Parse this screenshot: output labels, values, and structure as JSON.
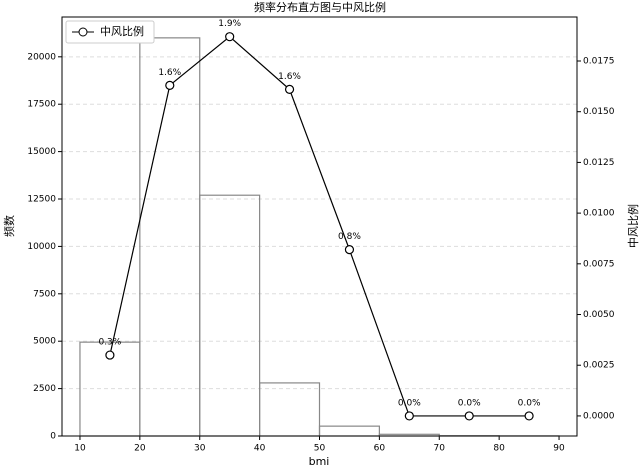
{
  "chart_data": {
    "type": "histogram",
    "title": "频率分布直方图与中风比例",
    "xlabel": "bmi",
    "ylabel": "频数",
    "y2label": "中风比例",
    "bins": [
      10,
      20,
      30,
      40,
      50,
      60,
      70,
      80,
      90
    ],
    "counts": [
      4950,
      21000,
      12700,
      2800,
      520,
      90,
      15,
      5
    ],
    "bar_color": "#888888",
    "xlim": [
      7,
      93
    ],
    "xticks": [
      10,
      20,
      30,
      40,
      50,
      60,
      70,
      80,
      90
    ],
    "ylim": [
      0,
      22100
    ],
    "yticks": [
      0,
      2500,
      5000,
      7500,
      10000,
      12500,
      15000,
      17500,
      20000
    ],
    "y2lim": [
      -0.00099,
      0.01967
    ],
    "y2ticks": [
      {
        "value": 0,
        "label": "0.0000"
      },
      {
        "value": 0.0025,
        "label": "0.0025"
      },
      {
        "value": 0.005,
        "label": "0.0050"
      },
      {
        "value": 0.0075,
        "label": "0.0075"
      },
      {
        "value": 0.01,
        "label": "0.0100"
      },
      {
        "value": 0.0125,
        "label": "0.0125"
      },
      {
        "value": 0.015,
        "label": "0.0150"
      },
      {
        "value": 0.0175,
        "label": "0.0175"
      }
    ],
    "grid": true,
    "legend": "upper left",
    "series": [
      {
        "name": "中风比例",
        "type": "line",
        "axis": "y2",
        "color": "#000000",
        "x": [
          15,
          25,
          35,
          45,
          55,
          65,
          75,
          85
        ],
        "values": [
          0.003,
          0.0163,
          0.0187,
          0.0161,
          0.0082,
          0,
          0,
          0
        ],
        "value_labels": [
          "0.3%",
          "1.6%",
          "1.9%",
          "1.6%",
          "0.8%",
          "0.0%",
          "0.0%",
          "0.0%"
        ]
      }
    ]
  }
}
